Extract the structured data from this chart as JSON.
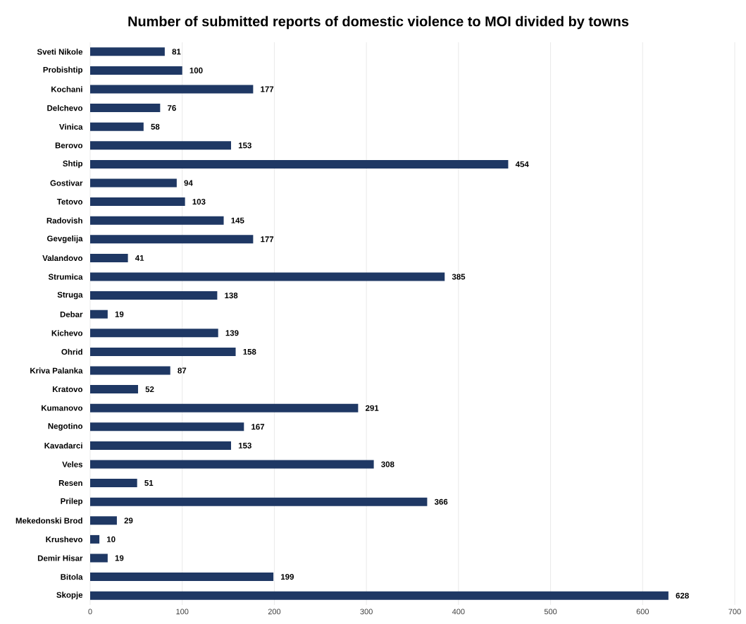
{
  "chart_data": {
    "type": "bar",
    "orientation": "horizontal",
    "title": "Number of submitted reports of domestic violence to MOI divided by towns",
    "categories": [
      "Sveti Nikole",
      "Probishtip",
      "Kochani",
      "Delchevo",
      "Vinica",
      "Berovo",
      "Shtip",
      "Gostivar",
      "Tetovo",
      "Radovish",
      "Gevgelija",
      "Valandovo",
      "Strumica",
      "Struga",
      "Debar",
      "Kichevo",
      "Ohrid",
      "Kriva Palanka",
      "Kratovo",
      "Kumanovo",
      "Negotino",
      "Kavadarci",
      "Veles",
      "Resen",
      "Prilep",
      "Mekedonski Brod",
      "Krushevo",
      "Demir Hisar",
      "Bitola",
      "Skopje"
    ],
    "values": [
      81,
      100,
      177,
      76,
      58,
      153,
      454,
      94,
      103,
      145,
      177,
      41,
      385,
      138,
      19,
      139,
      158,
      87,
      52,
      291,
      167,
      153,
      308,
      51,
      366,
      29,
      10,
      19,
      199,
      628
    ],
    "color": "#1f3864",
    "xlim": [
      0,
      700
    ],
    "xticks": [
      0,
      100,
      200,
      300,
      400,
      500,
      600,
      700
    ],
    "grid": "x",
    "data_labels": true
  }
}
